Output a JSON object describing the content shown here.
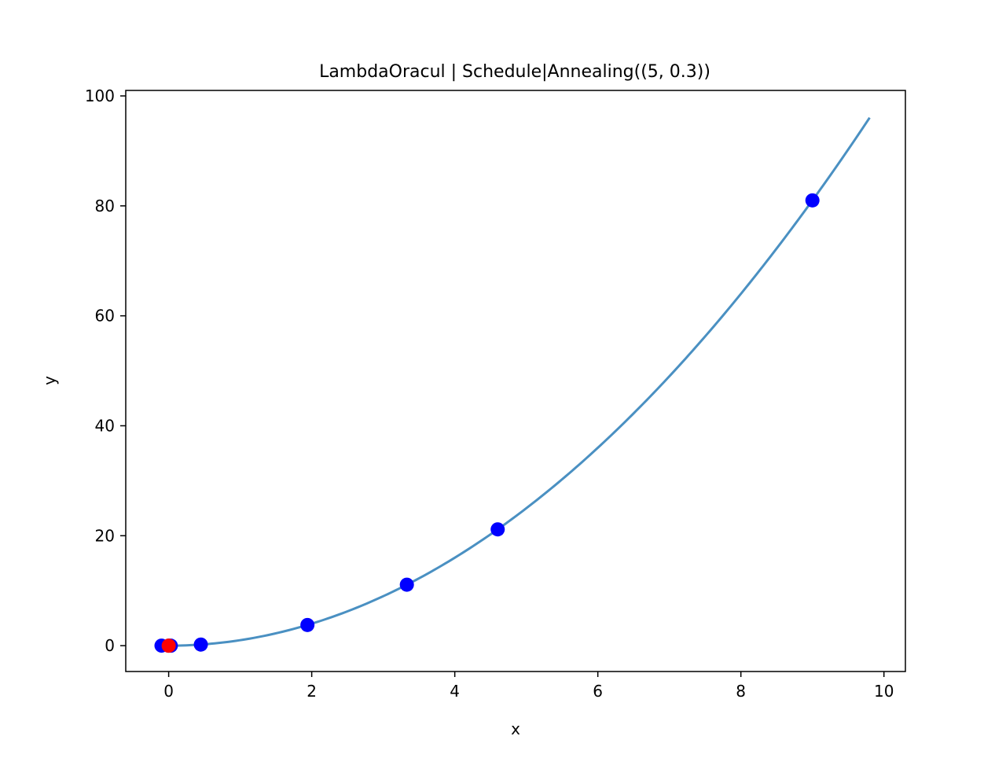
{
  "chart_data": {
    "type": "line",
    "title": "LambdaOracul | Schedule|Annealing((5, 0.3))",
    "xlabel": "x",
    "ylabel": "y",
    "xlim": [
      -0.6,
      10.3
    ],
    "ylim": [
      -4.7,
      101
    ],
    "xticks": [
      0,
      2,
      4,
      6,
      8,
      10
    ],
    "yticks": [
      0,
      20,
      40,
      60,
      80,
      100
    ],
    "xtick_labels": [
      "0",
      "2",
      "4",
      "6",
      "8",
      "10"
    ],
    "ytick_labels": [
      "0",
      "20",
      "40",
      "60",
      "80",
      "100"
    ],
    "grid": false,
    "curve": {
      "function": "y = x^2",
      "x_range": [
        -0.1,
        9.8
      ],
      "color": "#4a90c2"
    },
    "series": [
      {
        "type": "scatter",
        "color": "#0000ff",
        "points": [
          [
            -0.1,
            0.01
          ],
          [
            0.0,
            0.0
          ],
          [
            0.03,
            0.0
          ],
          [
            0.45,
            0.2
          ],
          [
            1.94,
            3.76
          ],
          [
            3.33,
            11.09
          ],
          [
            4.6,
            21.16
          ],
          [
            9.0,
            81.0
          ]
        ]
      },
      {
        "type": "scatter",
        "color": "#ff0000",
        "points": [
          [
            0.0,
            0.0
          ]
        ]
      }
    ]
  }
}
